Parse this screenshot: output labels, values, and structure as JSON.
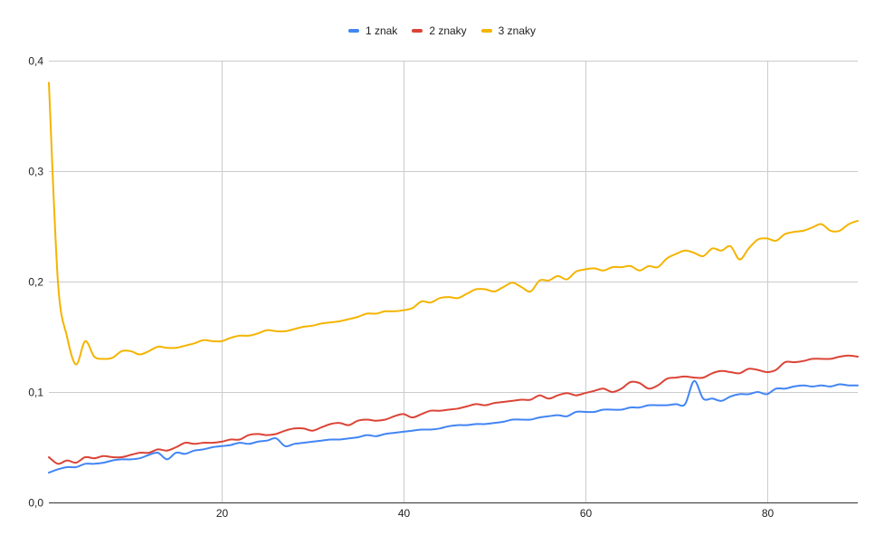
{
  "chart_data": {
    "type": "line",
    "title": "",
    "xlabel": "",
    "ylabel": "",
    "xlim": [
      1,
      90
    ],
    "ylim": [
      0,
      0.4
    ],
    "x_ticks": [
      20,
      40,
      60,
      80
    ],
    "x_tick_labels": [
      "20",
      "40",
      "60",
      "80"
    ],
    "y_ticks": [
      0,
      0.1,
      0.2,
      0.3,
      0.4
    ],
    "y_tick_labels": [
      "0,0",
      "0,1",
      "0,2",
      "0,3",
      "0,4"
    ],
    "grid": true,
    "legend_position": "top-center",
    "series": [
      {
        "name": "1 znak",
        "color": "#4285f4",
        "points": [
          [
            1,
            0.027
          ],
          [
            2,
            0.03
          ],
          [
            3,
            0.032
          ],
          [
            4,
            0.032
          ],
          [
            5,
            0.035
          ],
          [
            6,
            0.035
          ],
          [
            7,
            0.036
          ],
          [
            8,
            0.038
          ],
          [
            9,
            0.039
          ],
          [
            10,
            0.039
          ],
          [
            11,
            0.04
          ],
          [
            12,
            0.043
          ],
          [
            13,
            0.045
          ],
          [
            14,
            0.039
          ],
          [
            15,
            0.045
          ],
          [
            16,
            0.044
          ],
          [
            17,
            0.047
          ],
          [
            18,
            0.048
          ],
          [
            19,
            0.05
          ],
          [
            20,
            0.051
          ],
          [
            21,
            0.052
          ],
          [
            22,
            0.054
          ],
          [
            23,
            0.053
          ],
          [
            24,
            0.055
          ],
          [
            25,
            0.056
          ],
          [
            26,
            0.058
          ],
          [
            27,
            0.051
          ],
          [
            28,
            0.053
          ],
          [
            29,
            0.054
          ],
          [
            30,
            0.055
          ],
          [
            31,
            0.056
          ],
          [
            32,
            0.057
          ],
          [
            33,
            0.057
          ],
          [
            34,
            0.058
          ],
          [
            35,
            0.059
          ],
          [
            36,
            0.061
          ],
          [
            37,
            0.06
          ],
          [
            38,
            0.062
          ],
          [
            39,
            0.063
          ],
          [
            40,
            0.064
          ],
          [
            41,
            0.065
          ],
          [
            42,
            0.066
          ],
          [
            43,
            0.066
          ],
          [
            44,
            0.067
          ],
          [
            45,
            0.069
          ],
          [
            46,
            0.07
          ],
          [
            47,
            0.07
          ],
          [
            48,
            0.071
          ],
          [
            49,
            0.071
          ],
          [
            50,
            0.072
          ],
          [
            51,
            0.073
          ],
          [
            52,
            0.075
          ],
          [
            53,
            0.075
          ],
          [
            54,
            0.075
          ],
          [
            55,
            0.077
          ],
          [
            56,
            0.078
          ],
          [
            57,
            0.079
          ],
          [
            58,
            0.078
          ],
          [
            59,
            0.082
          ],
          [
            60,
            0.082
          ],
          [
            61,
            0.082
          ],
          [
            62,
            0.084
          ],
          [
            63,
            0.084
          ],
          [
            64,
            0.084
          ],
          [
            65,
            0.086
          ],
          [
            66,
            0.086
          ],
          [
            67,
            0.088
          ],
          [
            68,
            0.088
          ],
          [
            69,
            0.088
          ],
          [
            70,
            0.089
          ],
          [
            71,
            0.089
          ],
          [
            72,
            0.11
          ],
          [
            73,
            0.094
          ],
          [
            74,
            0.094
          ],
          [
            75,
            0.092
          ],
          [
            76,
            0.096
          ],
          [
            77,
            0.098
          ],
          [
            78,
            0.098
          ],
          [
            79,
            0.1
          ],
          [
            80,
            0.098
          ],
          [
            81,
            0.103
          ],
          [
            82,
            0.103
          ],
          [
            83,
            0.105
          ],
          [
            84,
            0.106
          ],
          [
            85,
            0.105
          ],
          [
            86,
            0.106
          ],
          [
            87,
            0.105
          ],
          [
            88,
            0.107
          ],
          [
            89,
            0.106
          ],
          [
            90,
            0.106
          ]
        ]
      },
      {
        "name": "2 znaky",
        "color": "#db4437",
        "points": [
          [
            1,
            0.041
          ],
          [
            2,
            0.035
          ],
          [
            3,
            0.038
          ],
          [
            4,
            0.036
          ],
          [
            5,
            0.041
          ],
          [
            6,
            0.04
          ],
          [
            7,
            0.042
          ],
          [
            8,
            0.041
          ],
          [
            9,
            0.041
          ],
          [
            10,
            0.043
          ],
          [
            11,
            0.045
          ],
          [
            12,
            0.045
          ],
          [
            13,
            0.048
          ],
          [
            14,
            0.047
          ],
          [
            15,
            0.05
          ],
          [
            16,
            0.054
          ],
          [
            17,
            0.053
          ],
          [
            18,
            0.054
          ],
          [
            19,
            0.054
          ],
          [
            20,
            0.055
          ],
          [
            21,
            0.057
          ],
          [
            22,
            0.057
          ],
          [
            23,
            0.061
          ],
          [
            24,
            0.062
          ],
          [
            25,
            0.061
          ],
          [
            26,
            0.062
          ],
          [
            27,
            0.065
          ],
          [
            28,
            0.067
          ],
          [
            29,
            0.067
          ],
          [
            30,
            0.065
          ],
          [
            31,
            0.068
          ],
          [
            32,
            0.071
          ],
          [
            33,
            0.072
          ],
          [
            34,
            0.07
          ],
          [
            35,
            0.074
          ],
          [
            36,
            0.075
          ],
          [
            37,
            0.074
          ],
          [
            38,
            0.075
          ],
          [
            39,
            0.078
          ],
          [
            40,
            0.08
          ],
          [
            41,
            0.077
          ],
          [
            42,
            0.08
          ],
          [
            43,
            0.083
          ],
          [
            44,
            0.083
          ],
          [
            45,
            0.084
          ],
          [
            46,
            0.085
          ],
          [
            47,
            0.087
          ],
          [
            48,
            0.089
          ],
          [
            49,
            0.088
          ],
          [
            50,
            0.09
          ],
          [
            51,
            0.091
          ],
          [
            52,
            0.092
          ],
          [
            53,
            0.093
          ],
          [
            54,
            0.093
          ],
          [
            55,
            0.097
          ],
          [
            56,
            0.094
          ],
          [
            57,
            0.097
          ],
          [
            58,
            0.099
          ],
          [
            59,
            0.097
          ],
          [
            60,
            0.099
          ],
          [
            61,
            0.101
          ],
          [
            62,
            0.103
          ],
          [
            63,
            0.1
          ],
          [
            64,
            0.103
          ],
          [
            65,
            0.109
          ],
          [
            66,
            0.108
          ],
          [
            67,
            0.103
          ],
          [
            68,
            0.106
          ],
          [
            69,
            0.112
          ],
          [
            70,
            0.113
          ],
          [
            71,
            0.114
          ],
          [
            72,
            0.113
          ],
          [
            73,
            0.113
          ],
          [
            74,
            0.117
          ],
          [
            75,
            0.119
          ],
          [
            76,
            0.118
          ],
          [
            77,
            0.117
          ],
          [
            78,
            0.121
          ],
          [
            79,
            0.12
          ],
          [
            80,
            0.118
          ],
          [
            81,
            0.12
          ],
          [
            82,
            0.127
          ],
          [
            83,
            0.127
          ],
          [
            84,
            0.128
          ],
          [
            85,
            0.13
          ],
          [
            86,
            0.13
          ],
          [
            87,
            0.13
          ],
          [
            88,
            0.132
          ],
          [
            89,
            0.133
          ],
          [
            90,
            0.132
          ]
        ]
      },
      {
        "name": "3 znaky",
        "color": "#f4b400",
        "points": [
          [
            1,
            0.38
          ],
          [
            2,
            0.2
          ],
          [
            3,
            0.15
          ],
          [
            4,
            0.125
          ],
          [
            5,
            0.146
          ],
          [
            6,
            0.132
          ],
          [
            7,
            0.13
          ],
          [
            8,
            0.131
          ],
          [
            9,
            0.137
          ],
          [
            10,
            0.137
          ],
          [
            11,
            0.134
          ],
          [
            12,
            0.137
          ],
          [
            13,
            0.141
          ],
          [
            14,
            0.14
          ],
          [
            15,
            0.14
          ],
          [
            16,
            0.142
          ],
          [
            17,
            0.144
          ],
          [
            18,
            0.147
          ],
          [
            19,
            0.146
          ],
          [
            20,
            0.146
          ],
          [
            21,
            0.149
          ],
          [
            22,
            0.151
          ],
          [
            23,
            0.151
          ],
          [
            24,
            0.153
          ],
          [
            25,
            0.156
          ],
          [
            26,
            0.155
          ],
          [
            27,
            0.155
          ],
          [
            28,
            0.157
          ],
          [
            29,
            0.159
          ],
          [
            30,
            0.16
          ],
          [
            31,
            0.162
          ],
          [
            32,
            0.163
          ],
          [
            33,
            0.164
          ],
          [
            34,
            0.166
          ],
          [
            35,
            0.168
          ],
          [
            36,
            0.171
          ],
          [
            37,
            0.171
          ],
          [
            38,
            0.173
          ],
          [
            39,
            0.173
          ],
          [
            40,
            0.174
          ],
          [
            41,
            0.176
          ],
          [
            42,
            0.182
          ],
          [
            43,
            0.181
          ],
          [
            44,
            0.185
          ],
          [
            45,
            0.186
          ],
          [
            46,
            0.185
          ],
          [
            47,
            0.189
          ],
          [
            48,
            0.193
          ],
          [
            49,
            0.193
          ],
          [
            50,
            0.191
          ],
          [
            51,
            0.195
          ],
          [
            52,
            0.199
          ],
          [
            53,
            0.195
          ],
          [
            54,
            0.191
          ],
          [
            55,
            0.201
          ],
          [
            56,
            0.201
          ],
          [
            57,
            0.205
          ],
          [
            58,
            0.202
          ],
          [
            59,
            0.209
          ],
          [
            60,
            0.211
          ],
          [
            61,
            0.212
          ],
          [
            62,
            0.21
          ],
          [
            63,
            0.213
          ],
          [
            64,
            0.213
          ],
          [
            65,
            0.214
          ],
          [
            66,
            0.21
          ],
          [
            67,
            0.214
          ],
          [
            68,
            0.213
          ],
          [
            69,
            0.221
          ],
          [
            70,
            0.225
          ],
          [
            71,
            0.228
          ],
          [
            72,
            0.226
          ],
          [
            73,
            0.223
          ],
          [
            74,
            0.23
          ],
          [
            75,
            0.228
          ],
          [
            76,
            0.232
          ],
          [
            77,
            0.22
          ],
          [
            78,
            0.23
          ],
          [
            79,
            0.238
          ],
          [
            80,
            0.239
          ],
          [
            81,
            0.237
          ],
          [
            82,
            0.243
          ],
          [
            83,
            0.245
          ],
          [
            84,
            0.246
          ],
          [
            85,
            0.249
          ],
          [
            86,
            0.252
          ],
          [
            87,
            0.246
          ],
          [
            88,
            0.246
          ],
          [
            89,
            0.252
          ],
          [
            90,
            0.255
          ]
        ]
      }
    ]
  }
}
